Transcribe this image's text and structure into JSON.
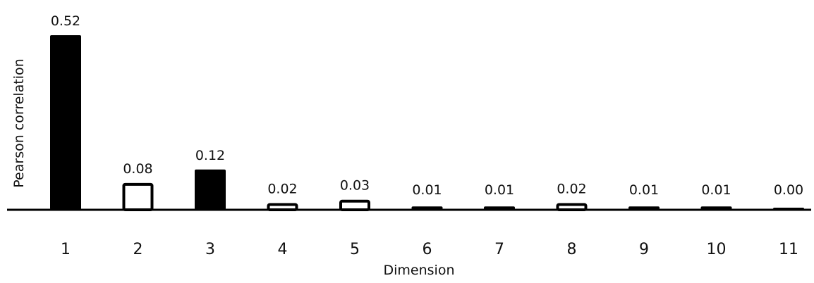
{
  "chart_data": {
    "type": "bar",
    "categories": [
      "1",
      "2",
      "3",
      "4",
      "5",
      "6",
      "7",
      "8",
      "9",
      "10",
      "11"
    ],
    "values": [
      0.52,
      0.08,
      0.12,
      0.02,
      0.03,
      0.01,
      0.01,
      0.02,
      0.01,
      0.01,
      0.0
    ],
    "labels": [
      "0.52",
      "0.08",
      "0.12",
      "0.02",
      "0.03",
      "0.01",
      "0.01",
      "0.02",
      "0.01",
      "0.01",
      "0.00"
    ],
    "filled": [
      true,
      false,
      true,
      false,
      false,
      true,
      true,
      false,
      true,
      true,
      true
    ],
    "xlabel": "Dimension",
    "ylabel": "Pearson correlation",
    "ylim": [
      0,
      0.52
    ],
    "grid": false,
    "colors": {
      "bar": "#000000",
      "hollow_fill": "#ffffff",
      "axis": "#000000"
    }
  }
}
